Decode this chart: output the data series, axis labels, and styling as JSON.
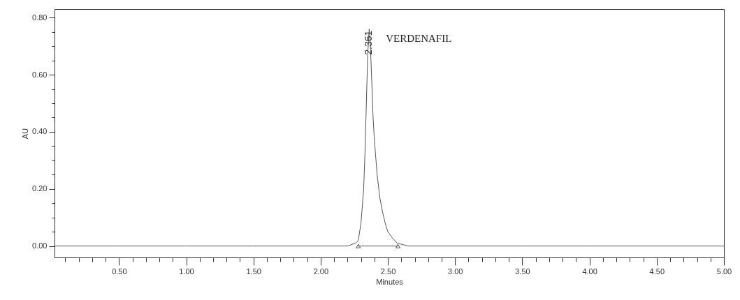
{
  "chart_data": {
    "type": "line",
    "xlabel": "Minutes",
    "ylabel": "AU",
    "xlim": [
      0.02,
      5.0
    ],
    "ylim": [
      -0.04,
      0.83
    ],
    "xticks": [
      {
        "value": 0.1,
        "label": null
      },
      {
        "value": 0.2,
        "label": null
      },
      {
        "value": 0.3,
        "label": null
      },
      {
        "value": 0.4,
        "label": null
      },
      {
        "value": 0.5,
        "label": "0.50"
      },
      {
        "value": 0.6,
        "label": null
      },
      {
        "value": 0.7,
        "label": null
      },
      {
        "value": 0.8,
        "label": null
      },
      {
        "value": 0.9,
        "label": null
      },
      {
        "value": 1.0,
        "label": "1.00"
      },
      {
        "value": 1.1,
        "label": null
      },
      {
        "value": 1.2,
        "label": null
      },
      {
        "value": 1.3,
        "label": null
      },
      {
        "value": 1.4,
        "label": null
      },
      {
        "value": 1.5,
        "label": "1.50"
      },
      {
        "value": 1.6,
        "label": null
      },
      {
        "value": 1.7,
        "label": null
      },
      {
        "value": 1.8,
        "label": null
      },
      {
        "value": 1.9,
        "label": null
      },
      {
        "value": 2.0,
        "label": "2.00"
      },
      {
        "value": 2.1,
        "label": null
      },
      {
        "value": 2.2,
        "label": null
      },
      {
        "value": 2.3,
        "label": null
      },
      {
        "value": 2.4,
        "label": null
      },
      {
        "value": 2.5,
        "label": "2.50"
      },
      {
        "value": 2.6,
        "label": null
      },
      {
        "value": 2.7,
        "label": null
      },
      {
        "value": 2.8,
        "label": null
      },
      {
        "value": 2.9,
        "label": null
      },
      {
        "value": 3.0,
        "label": "3.00"
      },
      {
        "value": 3.1,
        "label": null
      },
      {
        "value": 3.2,
        "label": null
      },
      {
        "value": 3.3,
        "label": null
      },
      {
        "value": 3.4,
        "label": null
      },
      {
        "value": 3.5,
        "label": "3.50"
      },
      {
        "value": 3.6,
        "label": null
      },
      {
        "value": 3.7,
        "label": null
      },
      {
        "value": 3.8,
        "label": null
      },
      {
        "value": 3.9,
        "label": null
      },
      {
        "value": 4.0,
        "label": "4.00"
      },
      {
        "value": 4.1,
        "label": null
      },
      {
        "value": 4.2,
        "label": null
      },
      {
        "value": 4.3,
        "label": null
      },
      {
        "value": 4.4,
        "label": null
      },
      {
        "value": 4.5,
        "label": "4.50"
      },
      {
        "value": 4.6,
        "label": null
      },
      {
        "value": 4.7,
        "label": null
      },
      {
        "value": 4.8,
        "label": null
      },
      {
        "value": 4.9,
        "label": null
      },
      {
        "value": 5.0,
        "label": "5.00"
      }
    ],
    "yticks": [
      {
        "value": 0.0,
        "label": "0.00"
      },
      {
        "value": 0.05,
        "label": null
      },
      {
        "value": 0.1,
        "label": null
      },
      {
        "value": 0.15,
        "label": null
      },
      {
        "value": 0.2,
        "label": "0.20"
      },
      {
        "value": 0.25,
        "label": null
      },
      {
        "value": 0.3,
        "label": null
      },
      {
        "value": 0.35,
        "label": null
      },
      {
        "value": 0.4,
        "label": "0.40"
      },
      {
        "value": 0.45,
        "label": null
      },
      {
        "value": 0.5,
        "label": null
      },
      {
        "value": 0.55,
        "label": null
      },
      {
        "value": 0.6,
        "label": "0.60"
      },
      {
        "value": 0.65,
        "label": null
      },
      {
        "value": 0.7,
        "label": null
      },
      {
        "value": 0.75,
        "label": null
      },
      {
        "value": 0.8,
        "label": "0.80"
      }
    ],
    "grid": false,
    "series": [
      {
        "color": "#555555",
        "marker": "none",
        "line_style": "solid",
        "x": [
          0.02,
          0.5,
          1.0,
          1.5,
          2.0,
          2.2,
          2.26,
          2.28,
          2.3,
          2.32,
          2.33,
          2.34,
          2.35,
          2.361,
          2.37,
          2.38,
          2.39,
          2.4,
          2.42,
          2.44,
          2.46,
          2.48,
          2.5,
          2.53,
          2.57,
          2.65,
          2.8,
          3.0,
          3.5,
          4.0,
          4.5,
          5.0
        ],
        "values": [
          0.0,
          0.0,
          0.0,
          0.0,
          0.0,
          0.0,
          0.01,
          0.02,
          0.08,
          0.2,
          0.33,
          0.5,
          0.67,
          0.76,
          0.7,
          0.58,
          0.45,
          0.37,
          0.25,
          0.17,
          0.12,
          0.08,
          0.05,
          0.03,
          0.01,
          0.0,
          0.0,
          0.0,
          0.0,
          0.0,
          0.0,
          0.0
        ]
      },
      {
        "color": "#555555",
        "marker": "triangle",
        "line_style": "solid",
        "x": [
          2.28,
          2.575
        ],
        "values": [
          0.0,
          0.0
        ]
      }
    ],
    "annotations": [
      {
        "text": "2.361",
        "x": 2.361,
        "y": 0.76
      },
      "VERDENAFIL"
    ]
  }
}
